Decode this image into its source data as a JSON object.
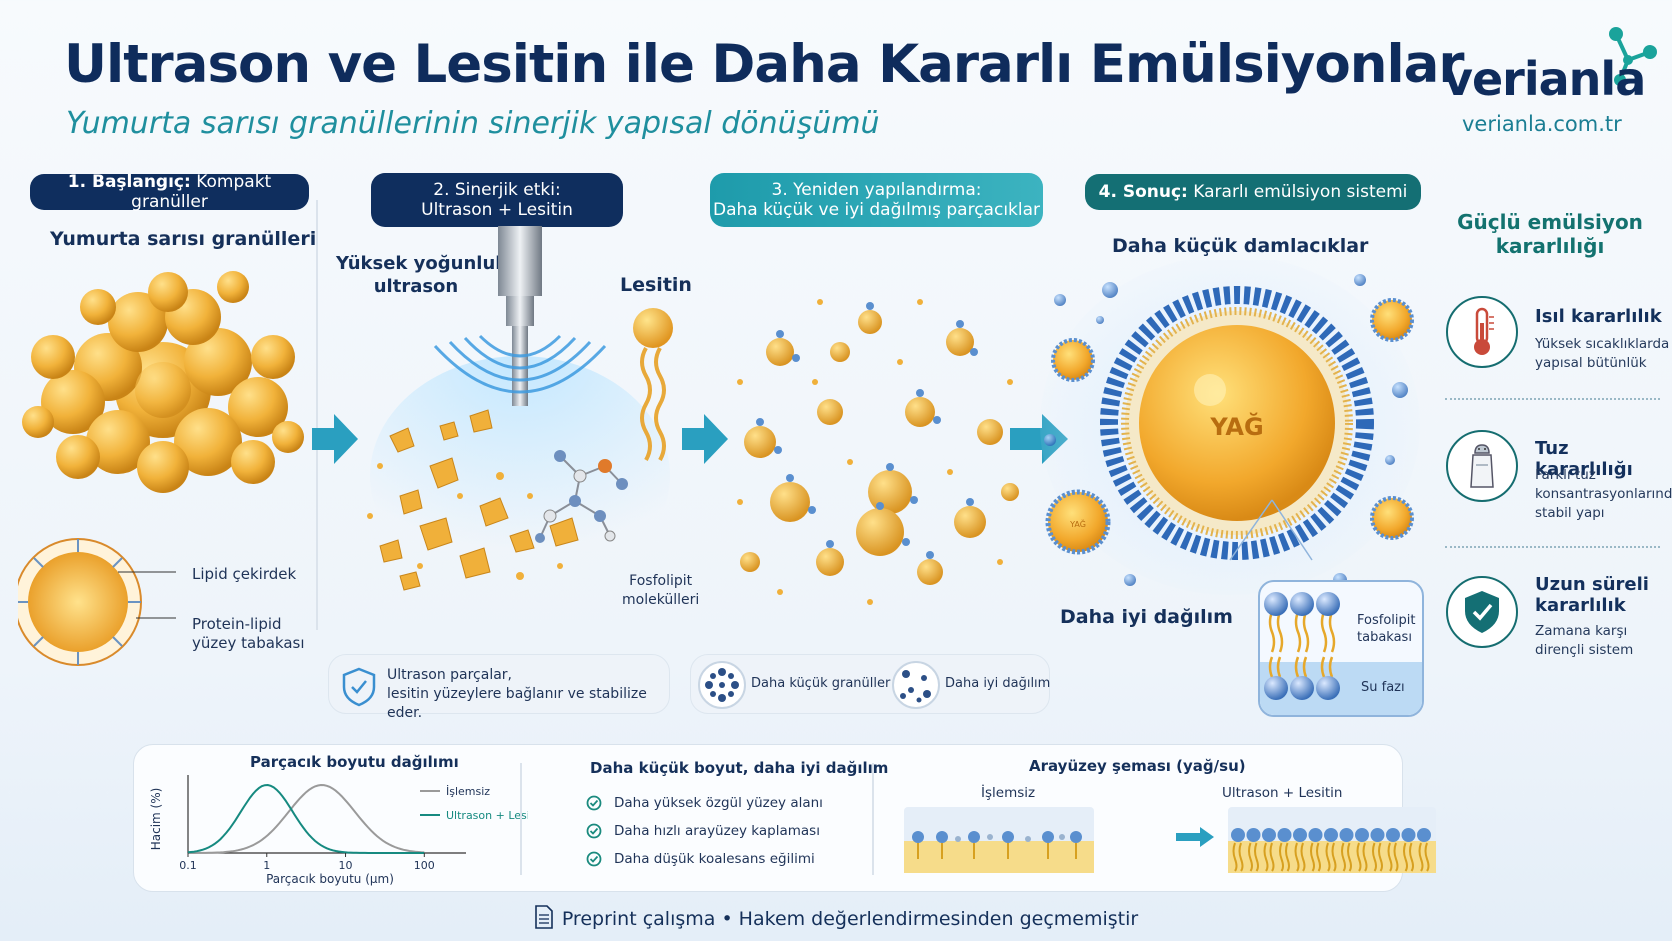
{
  "header": {
    "title": "Ultrason ve Lesitin ile Daha Kararlı Emülsiyonlar",
    "subtitle": "Yumurta sarısı granüllerinin sinerjik yapısal dönüşümü",
    "brand": "verianla",
    "brand_url": "verianla.com.tr"
  },
  "steps": [
    {
      "num": "1. Başlangıç:",
      "text": "Kompakt granüller"
    },
    {
      "num": "2. Sinerjik etki:",
      "text": "Ultrason + Lesitin"
    },
    {
      "num": "3.",
      "text": "Yeniden yapılandırma:",
      "text2": "Daha küçük ve iyi dağılmış parçacıklar"
    },
    {
      "num": "4. Sonuç:",
      "text": "Kararlı emülsiyon sistemi"
    }
  ],
  "stage1": {
    "heading": "Yumurta sarısı granülleri",
    "lipid_core": "Lipid çekirdek",
    "surface_line1": "Protein-lipid",
    "surface_line2": "yüzey tabakası"
  },
  "stage2": {
    "ultrasound_line1": "Yüksek yoğunluklu",
    "ultrasound_line2": "ultrason",
    "lecithin": "Lesitin",
    "phospholipid_line1": "Fosfolipit",
    "phospholipid_line2": "molekülleri",
    "info_line1": "Ultrason parçalar,",
    "info_line2": "lesitin yüzeylere bağlanır ve stabilize eder."
  },
  "stage3": {
    "badge_small": "Daha küçük granüller",
    "badge_dispersed": "Daha iyi dağılım"
  },
  "stage4": {
    "heading": "Daha küçük damlacıklar",
    "oil": "YAĞ",
    "mini_oil": "YAĞ",
    "dispersion": "Daha iyi dağılım",
    "layer_line1": "Fosfolipit",
    "layer_line2": "tabakası",
    "water": "Su fazı"
  },
  "right_panel": {
    "title_line1": "Güçlü emülsiyon",
    "title_line2": "kararlılığı",
    "features": [
      {
        "icon": "thermometer-icon",
        "title": "Isıl kararlılık",
        "desc_line1": "Yüksek sıcaklıklarda",
        "desc_line2": "yapısal bütünlük",
        "desc_line3": ""
      },
      {
        "icon": "salt-shaker-icon",
        "title": "Tuz kararlılığı",
        "desc_line1": "Farklı tuz",
        "desc_line2": "konsantrasyonlarında",
        "desc_line3": "stabil yapı"
      },
      {
        "icon": "shield-check-icon",
        "title": "Uzun süreli kararlılık",
        "title_line1": "Uzun süreli",
        "title_line2": "kararlılık",
        "desc_line1": "Zamana karşı",
        "desc_line2": "dirençli sistem",
        "desc_line3": ""
      }
    ]
  },
  "chart_data": {
    "type": "line",
    "title": "Parçacık boyutu dağılımı",
    "xlabel": "Parçacık boyutu (µm)",
    "ylabel": "Hacim (%)",
    "x_scale": "log",
    "x_ticks": [
      "0.1",
      "1",
      "10",
      "100"
    ],
    "xlim": [
      0.1,
      100
    ],
    "legend_position": "right",
    "series": [
      {
        "name": "İşlemsiz",
        "color": "#9a9a9a",
        "peak_x": 5,
        "width_decades": 0.42,
        "peak_value": 1.0
      },
      {
        "name": "Ultrason + Lesitin",
        "color": "#168a80",
        "peak_x": 1,
        "width_decades": 0.33,
        "peak_value": 1.0
      }
    ]
  },
  "benefits": {
    "heading": "Daha küçük boyut, daha iyi dağılım",
    "items": [
      "Daha yüksek özgül yüzey alanı",
      "Daha hızlı arayüzey kaplaması",
      "Daha düşük koalesans eğilimi"
    ]
  },
  "interface": {
    "heading": "Arayüzey şeması (yağ/su)",
    "untreated": "İşlemsiz",
    "treated": "Ultrason + Lesitin"
  },
  "footer": {
    "text": "Preprint çalışma • Hakem değerlendirmesinden geçmemiştir"
  },
  "colors": {
    "navy": "#0f2e5e",
    "teal": "#146f74",
    "cyan": "#1f8f9e",
    "yolk": "#f0b03a",
    "water": "#2f7fd1"
  }
}
